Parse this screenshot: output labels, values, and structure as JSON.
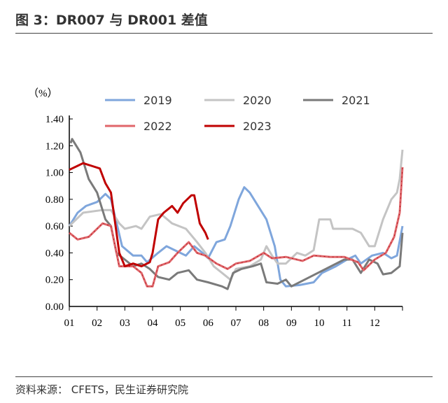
{
  "title": "图 3：DR007 与 DR001 差值",
  "source": "资料来源： CFETS，民生证券研究院",
  "chart_data": {
    "type": "line",
    "title": "图 3：DR007 与 DR001 差值",
    "ylabel": "（%）",
    "xlabel": "",
    "ylim": [
      0,
      1.4
    ],
    "yticks": [
      "0.00",
      "0.20",
      "0.40",
      "0.60",
      "0.80",
      "1.00",
      "1.20",
      "1.40"
    ],
    "xlim": [
      1,
      13
    ],
    "xticks": [
      "01",
      "02",
      "03",
      "04",
      "05",
      "06",
      "07",
      "08",
      "09",
      "10",
      "11",
      "12"
    ],
    "grid": false,
    "legend": "top",
    "series": [
      {
        "name": "2019",
        "color": "#7fa6dc",
        "dashed": false,
        "points": [
          [
            1,
            0.6
          ],
          [
            1.3,
            0.7
          ],
          [
            1.6,
            0.75
          ],
          [
            2,
            0.78
          ],
          [
            2.3,
            0.84
          ],
          [
            2.5,
            0.8
          ],
          [
            2.9,
            0.45
          ],
          [
            3.3,
            0.38
          ],
          [
            3.6,
            0.38
          ],
          [
            3.8,
            0.33
          ],
          [
            4.2,
            0.4
          ],
          [
            4.5,
            0.45
          ],
          [
            4.8,
            0.42
          ],
          [
            5.2,
            0.38
          ],
          [
            5.5,
            0.45
          ],
          [
            5.8,
            0.4
          ],
          [
            6,
            0.36
          ],
          [
            6.3,
            0.48
          ],
          [
            6.6,
            0.5
          ],
          [
            6.8,
            0.6
          ],
          [
            7.1,
            0.8
          ],
          [
            7.3,
            0.89
          ],
          [
            7.5,
            0.85
          ],
          [
            7.8,
            0.75
          ],
          [
            8.1,
            0.65
          ],
          [
            8.4,
            0.45
          ],
          [
            8.6,
            0.2
          ],
          [
            8.8,
            0.15
          ],
          [
            9.3,
            0.16
          ],
          [
            9.8,
            0.18
          ],
          [
            10.1,
            0.25
          ],
          [
            10.6,
            0.3
          ],
          [
            11,
            0.35
          ],
          [
            11.3,
            0.38
          ],
          [
            11.5,
            0.32
          ],
          [
            11.9,
            0.38
          ],
          [
            12.3,
            0.4
          ],
          [
            12.6,
            0.36
          ],
          [
            12.8,
            0.38
          ],
          [
            13,
            0.6
          ]
        ]
      },
      {
        "name": "2020",
        "color": "#c4c4c4",
        "dashed": false,
        "points": [
          [
            1,
            0.6
          ],
          [
            1.5,
            0.7
          ],
          [
            2.2,
            0.72
          ],
          [
            2.5,
            0.72
          ],
          [
            2.8,
            0.62
          ],
          [
            3,
            0.58
          ],
          [
            3.4,
            0.6
          ],
          [
            3.6,
            0.58
          ],
          [
            3.9,
            0.67
          ],
          [
            4.3,
            0.69
          ],
          [
            4.7,
            0.62
          ],
          [
            5.2,
            0.58
          ],
          [
            5.6,
            0.48
          ],
          [
            5.9,
            0.4
          ],
          [
            6.2,
            0.3
          ],
          [
            6.5,
            0.25
          ],
          [
            6.8,
            0.2
          ],
          [
            7,
            0.28
          ],
          [
            7.5,
            0.3
          ],
          [
            7.9,
            0.35
          ],
          [
            8.1,
            0.45
          ],
          [
            8.3,
            0.38
          ],
          [
            8.5,
            0.32
          ],
          [
            8.8,
            0.32
          ],
          [
            9.2,
            0.4
          ],
          [
            9.5,
            0.38
          ],
          [
            9.8,
            0.42
          ],
          [
            10,
            0.65
          ],
          [
            10.4,
            0.65
          ],
          [
            10.5,
            0.58
          ],
          [
            11.2,
            0.58
          ],
          [
            11.5,
            0.55
          ],
          [
            11.8,
            0.45
          ],
          [
            12,
            0.45
          ],
          [
            12.3,
            0.65
          ],
          [
            12.6,
            0.8
          ],
          [
            12.8,
            0.85
          ],
          [
            12.9,
            0.95
          ],
          [
            13,
            1.17
          ]
        ]
      },
      {
        "name": "2021",
        "color": "#7a7a7a",
        "dashed": false,
        "points": [
          [
            1.05,
            1.22
          ],
          [
            1.1,
            1.25
          ],
          [
            1.4,
            1.15
          ],
          [
            1.7,
            0.95
          ],
          [
            2,
            0.85
          ],
          [
            2.3,
            0.65
          ],
          [
            2.5,
            0.6
          ],
          [
            2.7,
            0.4
          ],
          [
            3,
            0.35
          ],
          [
            3.3,
            0.3
          ],
          [
            3.6,
            0.32
          ],
          [
            3.9,
            0.28
          ],
          [
            4.2,
            0.22
          ],
          [
            4.6,
            0.2
          ],
          [
            4.9,
            0.25
          ],
          [
            5.3,
            0.27
          ],
          [
            5.6,
            0.2
          ],
          [
            6,
            0.18
          ],
          [
            6.5,
            0.15
          ],
          [
            6.7,
            0.13
          ],
          [
            6.9,
            0.25
          ],
          [
            7.2,
            0.28
          ],
          [
            7.6,
            0.3
          ],
          [
            7.9,
            0.32
          ],
          [
            8.1,
            0.18
          ],
          [
            8.5,
            0.17
          ],
          [
            8.8,
            0.2
          ],
          [
            9,
            0.15
          ],
          [
            10.9,
            0.35
          ],
          [
            11.2,
            0.35
          ],
          [
            11.5,
            0.25
          ],
          [
            11.8,
            0.35
          ],
          [
            12.1,
            0.32
          ],
          [
            12.3,
            0.24
          ],
          [
            12.6,
            0.25
          ],
          [
            12.9,
            0.3
          ],
          [
            13,
            0.55
          ]
        ]
      },
      {
        "name": "2022",
        "color": "#e0666a",
        "dashed": true,
        "points": [
          [
            1,
            0.55
          ],
          [
            1.3,
            0.5
          ],
          [
            1.7,
            0.52
          ],
          [
            2.2,
            0.62
          ],
          [
            2.5,
            0.6
          ],
          [
            2.8,
            0.3
          ],
          [
            3.3,
            0.3
          ],
          [
            3.6,
            0.25
          ],
          [
            3.8,
            0.15
          ],
          [
            4,
            0.15
          ],
          [
            4.2,
            0.3
          ],
          [
            4.6,
            0.33
          ],
          [
            4.9,
            0.4
          ],
          [
            5.3,
            0.48
          ],
          [
            5.6,
            0.4
          ],
          [
            5.9,
            0.38
          ],
          [
            6.3,
            0.32
          ],
          [
            6.7,
            0.28
          ],
          [
            7,
            0.32
          ],
          [
            7.5,
            0.34
          ],
          [
            8,
            0.4
          ],
          [
            8.3,
            0.36
          ],
          [
            8.8,
            0.37
          ],
          [
            9.4,
            0.34
          ],
          [
            9.8,
            0.38
          ],
          [
            10.4,
            0.37
          ],
          [
            10.9,
            0.37
          ],
          [
            11.4,
            0.33
          ],
          [
            11.6,
            0.27
          ],
          [
            12,
            0.35
          ],
          [
            12.4,
            0.4
          ],
          [
            12.7,
            0.52
          ],
          [
            12.9,
            0.7
          ],
          [
            13,
            1.04
          ]
        ]
      },
      {
        "name": "2023",
        "color": "#c00000",
        "dashed": false,
        "points": [
          [
            1,
            1.02
          ],
          [
            1.3,
            1.05
          ],
          [
            1.5,
            1.07
          ],
          [
            1.8,
            1.05
          ],
          [
            2.1,
            1.03
          ],
          [
            2.3,
            0.92
          ],
          [
            2.5,
            0.85
          ],
          [
            2.8,
            0.4
          ],
          [
            3,
            0.3
          ],
          [
            3.3,
            0.32
          ],
          [
            3.6,
            0.3
          ],
          [
            3.9,
            0.33
          ],
          [
            4,
            0.4
          ],
          [
            4.2,
            0.65
          ],
          [
            4.4,
            0.7
          ],
          [
            4.7,
            0.75
          ],
          [
            4.9,
            0.7
          ],
          [
            5.1,
            0.77
          ],
          [
            5.4,
            0.83
          ],
          [
            5.5,
            0.83
          ],
          [
            5.7,
            0.62
          ],
          [
            5.9,
            0.55
          ],
          [
            6,
            0.5
          ]
        ]
      }
    ]
  }
}
